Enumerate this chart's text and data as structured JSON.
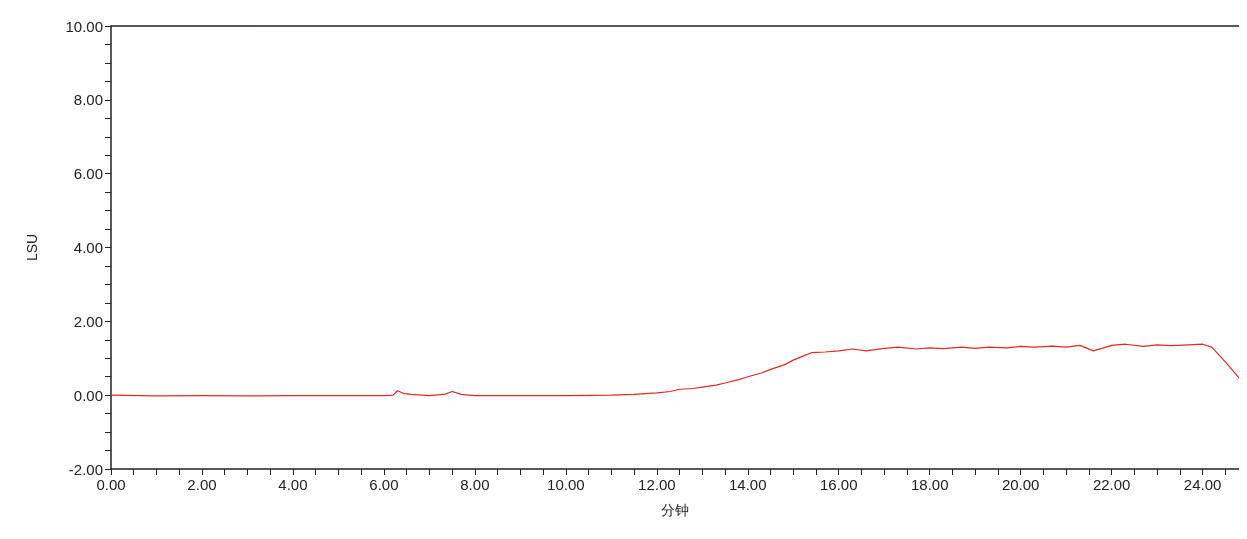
{
  "chart_data": {
    "type": "line",
    "xlabel": "分钟",
    "ylabel": "LSU",
    "xlim": [
      0,
      24.8
    ],
    "ylim": [
      -2,
      10
    ],
    "grid": false,
    "marker": "none",
    "line_style": "solid",
    "xticks": [
      {
        "value": 0,
        "label": "0.00"
      },
      {
        "value": 0.5,
        "label": null
      },
      {
        "value": 1,
        "label": null
      },
      {
        "value": 1.5,
        "label": null
      },
      {
        "value": 2,
        "label": "2.00"
      },
      {
        "value": 2.5,
        "label": null
      },
      {
        "value": 3,
        "label": null
      },
      {
        "value": 3.5,
        "label": null
      },
      {
        "value": 4,
        "label": "4.00"
      },
      {
        "value": 4.5,
        "label": null
      },
      {
        "value": 5,
        "label": null
      },
      {
        "value": 5.5,
        "label": null
      },
      {
        "value": 6,
        "label": "6.00"
      },
      {
        "value": 6.5,
        "label": null
      },
      {
        "value": 7,
        "label": null
      },
      {
        "value": 7.5,
        "label": null
      },
      {
        "value": 8,
        "label": "8.00"
      },
      {
        "value": 8.5,
        "label": null
      },
      {
        "value": 9,
        "label": null
      },
      {
        "value": 9.5,
        "label": null
      },
      {
        "value": 10,
        "label": "10.00"
      },
      {
        "value": 10.5,
        "label": null
      },
      {
        "value": 11,
        "label": null
      },
      {
        "value": 11.5,
        "label": null
      },
      {
        "value": 12,
        "label": "12.00"
      },
      {
        "value": 12.5,
        "label": null
      },
      {
        "value": 13,
        "label": null
      },
      {
        "value": 13.5,
        "label": null
      },
      {
        "value": 14,
        "label": "14.00"
      },
      {
        "value": 14.5,
        "label": null
      },
      {
        "value": 15,
        "label": null
      },
      {
        "value": 15.5,
        "label": null
      },
      {
        "value": 16,
        "label": "16.00"
      },
      {
        "value": 16.5,
        "label": null
      },
      {
        "value": 17,
        "label": null
      },
      {
        "value": 17.5,
        "label": null
      },
      {
        "value": 18,
        "label": "18.00"
      },
      {
        "value": 18.5,
        "label": null
      },
      {
        "value": 19,
        "label": null
      },
      {
        "value": 19.5,
        "label": null
      },
      {
        "value": 20,
        "label": "20.00"
      },
      {
        "value": 20.5,
        "label": null
      },
      {
        "value": 21,
        "label": null
      },
      {
        "value": 21.5,
        "label": null
      },
      {
        "value": 22,
        "label": "22.00"
      },
      {
        "value": 22.5,
        "label": null
      },
      {
        "value": 23,
        "label": null
      },
      {
        "value": 23.5,
        "label": null
      },
      {
        "value": 24,
        "label": "24.00"
      },
      {
        "value": 24.5,
        "label": null
      }
    ],
    "yticks": [
      {
        "value": -2,
        "label": "-2.00"
      },
      {
        "value": -1.5,
        "label": null
      },
      {
        "value": -1,
        "label": null
      },
      {
        "value": -0.5,
        "label": null
      },
      {
        "value": 0,
        "label": "0.00"
      },
      {
        "value": 0.5,
        "label": null
      },
      {
        "value": 1,
        "label": null
      },
      {
        "value": 1.5,
        "label": null
      },
      {
        "value": 2,
        "label": "2.00"
      },
      {
        "value": 2.5,
        "label": null
      },
      {
        "value": 3,
        "label": null
      },
      {
        "value": 3.5,
        "label": null
      },
      {
        "value": 4,
        "label": "4.00"
      },
      {
        "value": 4.5,
        "label": null
      },
      {
        "value": 5,
        "label": null
      },
      {
        "value": 5.5,
        "label": null
      },
      {
        "value": 6,
        "label": "6.00"
      },
      {
        "value": 6.5,
        "label": null
      },
      {
        "value": 7,
        "label": null
      },
      {
        "value": 7.5,
        "label": null
      },
      {
        "value": 8,
        "label": "8.00"
      },
      {
        "value": 8.5,
        "label": null
      },
      {
        "value": 9,
        "label": null
      },
      {
        "value": 9.5,
        "label": null
      },
      {
        "value": 10,
        "label": "10.00"
      }
    ],
    "series": [
      {
        "color": "#e02828",
        "x": [
          0,
          1,
          2,
          3,
          4,
          5,
          6,
          6.2,
          6.3,
          6.45,
          6.6,
          7,
          7.35,
          7.5,
          7.7,
          8,
          9,
          10,
          11,
          11.5,
          12,
          12.3,
          12.5,
          12.8,
          13,
          13.3,
          13.5,
          13.8,
          14,
          14.3,
          14.5,
          14.8,
          15,
          15.2,
          15.4,
          15.7,
          16,
          16.3,
          16.6,
          17,
          17.3,
          17.7,
          18,
          18.3,
          18.7,
          19,
          19.3,
          19.7,
          20,
          20.3,
          20.7,
          21,
          21.3,
          21.6,
          22,
          22.3,
          22.7,
          23,
          23.3,
          23.7,
          24,
          24.2,
          24.5,
          24.8
        ],
        "values": [
          0,
          -0.02,
          -0.01,
          -0.02,
          -0.01,
          -0.01,
          -0.01,
          0,
          0.12,
          0.04,
          0.02,
          -0.01,
          0.03,
          0.1,
          0.02,
          -0.01,
          -0.01,
          -0.01,
          0,
          0.02,
          0.06,
          0.1,
          0.16,
          0.18,
          0.22,
          0.27,
          0.33,
          0.42,
          0.5,
          0.6,
          0.7,
          0.82,
          0.95,
          1.05,
          1.15,
          1.17,
          1.2,
          1.25,
          1.2,
          1.27,
          1.3,
          1.25,
          1.28,
          1.26,
          1.3,
          1.27,
          1.3,
          1.28,
          1.32,
          1.3,
          1.33,
          1.3,
          1.35,
          1.2,
          1.35,
          1.38,
          1.32,
          1.36,
          1.34,
          1.36,
          1.38,
          1.3,
          0.9,
          0.47
        ]
      }
    ]
  }
}
